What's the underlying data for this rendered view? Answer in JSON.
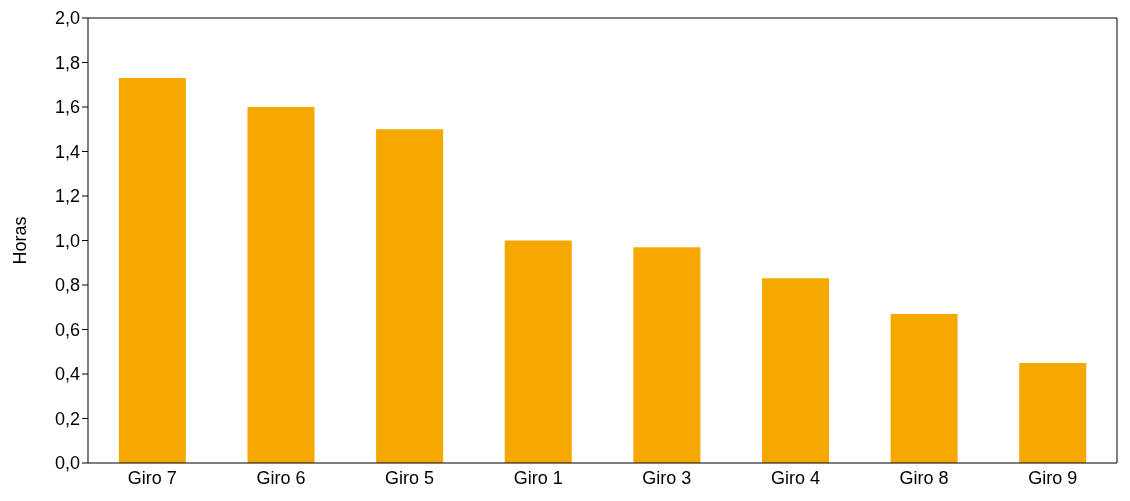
{
  "chart_data": {
    "type": "bar",
    "ylabel": "Horas",
    "categories": [
      "Giro 7",
      "Giro 6",
      "Giro 5",
      "Giro 1",
      "Giro 3",
      "Giro 4",
      "Giro 8",
      "Giro 9"
    ],
    "values": [
      1.73,
      1.6,
      1.5,
      1.0,
      0.97,
      0.83,
      0.67,
      0.45
    ],
    "color": "#f5a800",
    "ylim": [
      0,
      2
    ],
    "yticks": [
      {
        "value": 0,
        "label": "0,0"
      },
      {
        "value": 0.2,
        "label": "0,2"
      },
      {
        "value": 0.4,
        "label": "0,4"
      },
      {
        "value": 0.6,
        "label": "0,6"
      },
      {
        "value": 0.8,
        "label": "0,8"
      },
      {
        "value": 1,
        "label": "1,0"
      },
      {
        "value": 1.2,
        "label": "1,2"
      },
      {
        "value": 1.4,
        "label": "1,4"
      },
      {
        "value": 1.6,
        "label": "1,6"
      },
      {
        "value": 1.8,
        "label": "1,8"
      },
      {
        "value": 2,
        "label": "2,0"
      }
    ],
    "grid": false,
    "legend": false
  }
}
